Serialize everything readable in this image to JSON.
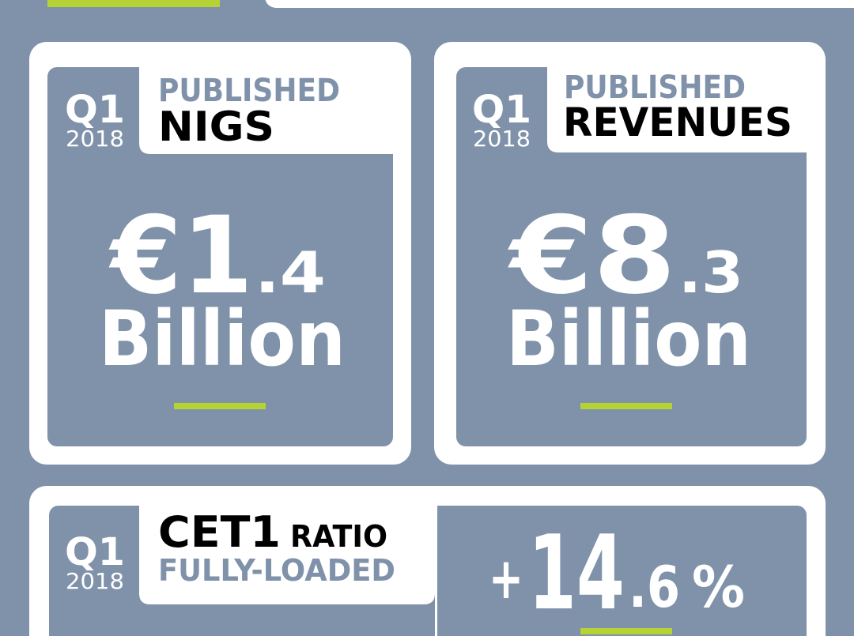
{
  "cards": [
    {
      "quarter": "Q1",
      "year": "2018",
      "label_top": "PUBLISHED",
      "label_main": "NIGS",
      "value_main": "€1",
      "value_decimal": ".4",
      "value_unit": "Billion"
    },
    {
      "quarter": "Q1",
      "year": "2018",
      "label_top": "PUBLISHED",
      "label_main": "REVENUES",
      "value_main": "€8",
      "value_decimal": ".3",
      "value_unit": "Billion"
    }
  ],
  "cet1": {
    "quarter": "Q1",
    "year": "2018",
    "label_main": "CET1",
    "label_suffix": "RATIO",
    "label_sub": "FULLY-LOADED",
    "sign": "+",
    "value_main": "14",
    "value_decimal": ".6",
    "value_unit": "%"
  }
}
